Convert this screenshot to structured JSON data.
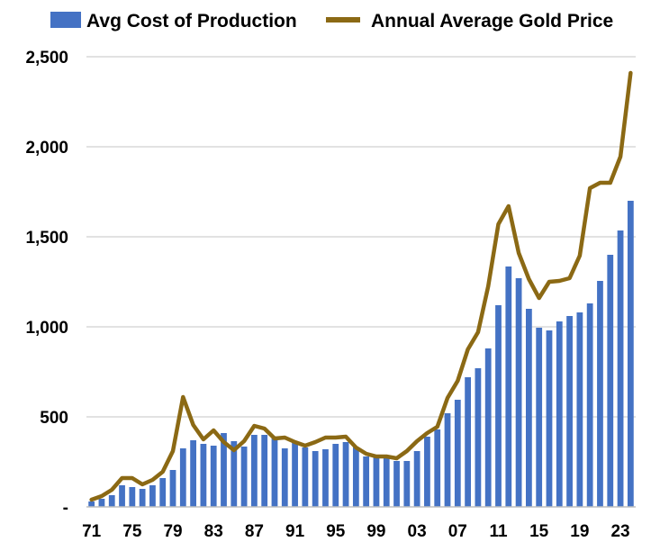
{
  "chart_data": {
    "type": "bar",
    "title": "",
    "xlabel": "",
    "ylabel": "",
    "ylim": [
      0,
      2500
    ],
    "grid": "horizontal",
    "legend": "top",
    "x": [
      "71",
      "72",
      "73",
      "74",
      "75",
      "76",
      "77",
      "78",
      "79",
      "80",
      "81",
      "82",
      "83",
      "84",
      "85",
      "86",
      "87",
      "88",
      "89",
      "90",
      "91",
      "92",
      "93",
      "94",
      "95",
      "96",
      "97",
      "98",
      "99",
      "00",
      "01",
      "02",
      "03",
      "04",
      "05",
      "06",
      "07",
      "08",
      "09",
      "10",
      "11",
      "12",
      "13",
      "14",
      "15",
      "16",
      "17",
      "18",
      "19",
      "20",
      "21",
      "22",
      "23",
      "24"
    ],
    "x_tick_labels": [
      "71",
      "75",
      "79",
      "83",
      "87",
      "91",
      "95",
      "99",
      "03",
      "07",
      "11",
      "15",
      "19",
      "23"
    ],
    "y_ticks": [
      0,
      500,
      1000,
      1500,
      2000,
      2500
    ],
    "y_tick_labels": [
      "-",
      "500",
      "1,000",
      "1,500",
      "2,000",
      "2,500"
    ],
    "series": [
      {
        "name": "Avg Cost of Production",
        "type": "bar",
        "color": "#4472C4",
        "values": [
          30,
          45,
          65,
          120,
          110,
          100,
          120,
          160,
          205,
          325,
          370,
          350,
          340,
          410,
          365,
          335,
          400,
          400,
          380,
          325,
          360,
          330,
          310,
          320,
          350,
          360,
          330,
          280,
          280,
          270,
          255,
          255,
          310,
          390,
          430,
          520,
          595,
          720,
          770,
          880,
          1120,
          1335,
          1270,
          1100,
          995,
          980,
          1030,
          1060,
          1080,
          1130,
          1255,
          1400,
          1535,
          1700
        ]
      },
      {
        "name": "Annual Average Gold Price",
        "type": "line",
        "color": "#8B6914",
        "values": [
          40,
          60,
          95,
          160,
          160,
          125,
          150,
          195,
          310,
          610,
          455,
          375,
          425,
          360,
          315,
          365,
          450,
          435,
          380,
          385,
          360,
          340,
          360,
          385,
          385,
          390,
          330,
          295,
          280,
          280,
          270,
          310,
          365,
          410,
          445,
          605,
          700,
          875,
          970,
          1225,
          1570,
          1670,
          1410,
          1265,
          1160,
          1250,
          1255,
          1270,
          1395,
          1770,
          1800,
          1800,
          1945,
          2410
        ]
      }
    ]
  }
}
